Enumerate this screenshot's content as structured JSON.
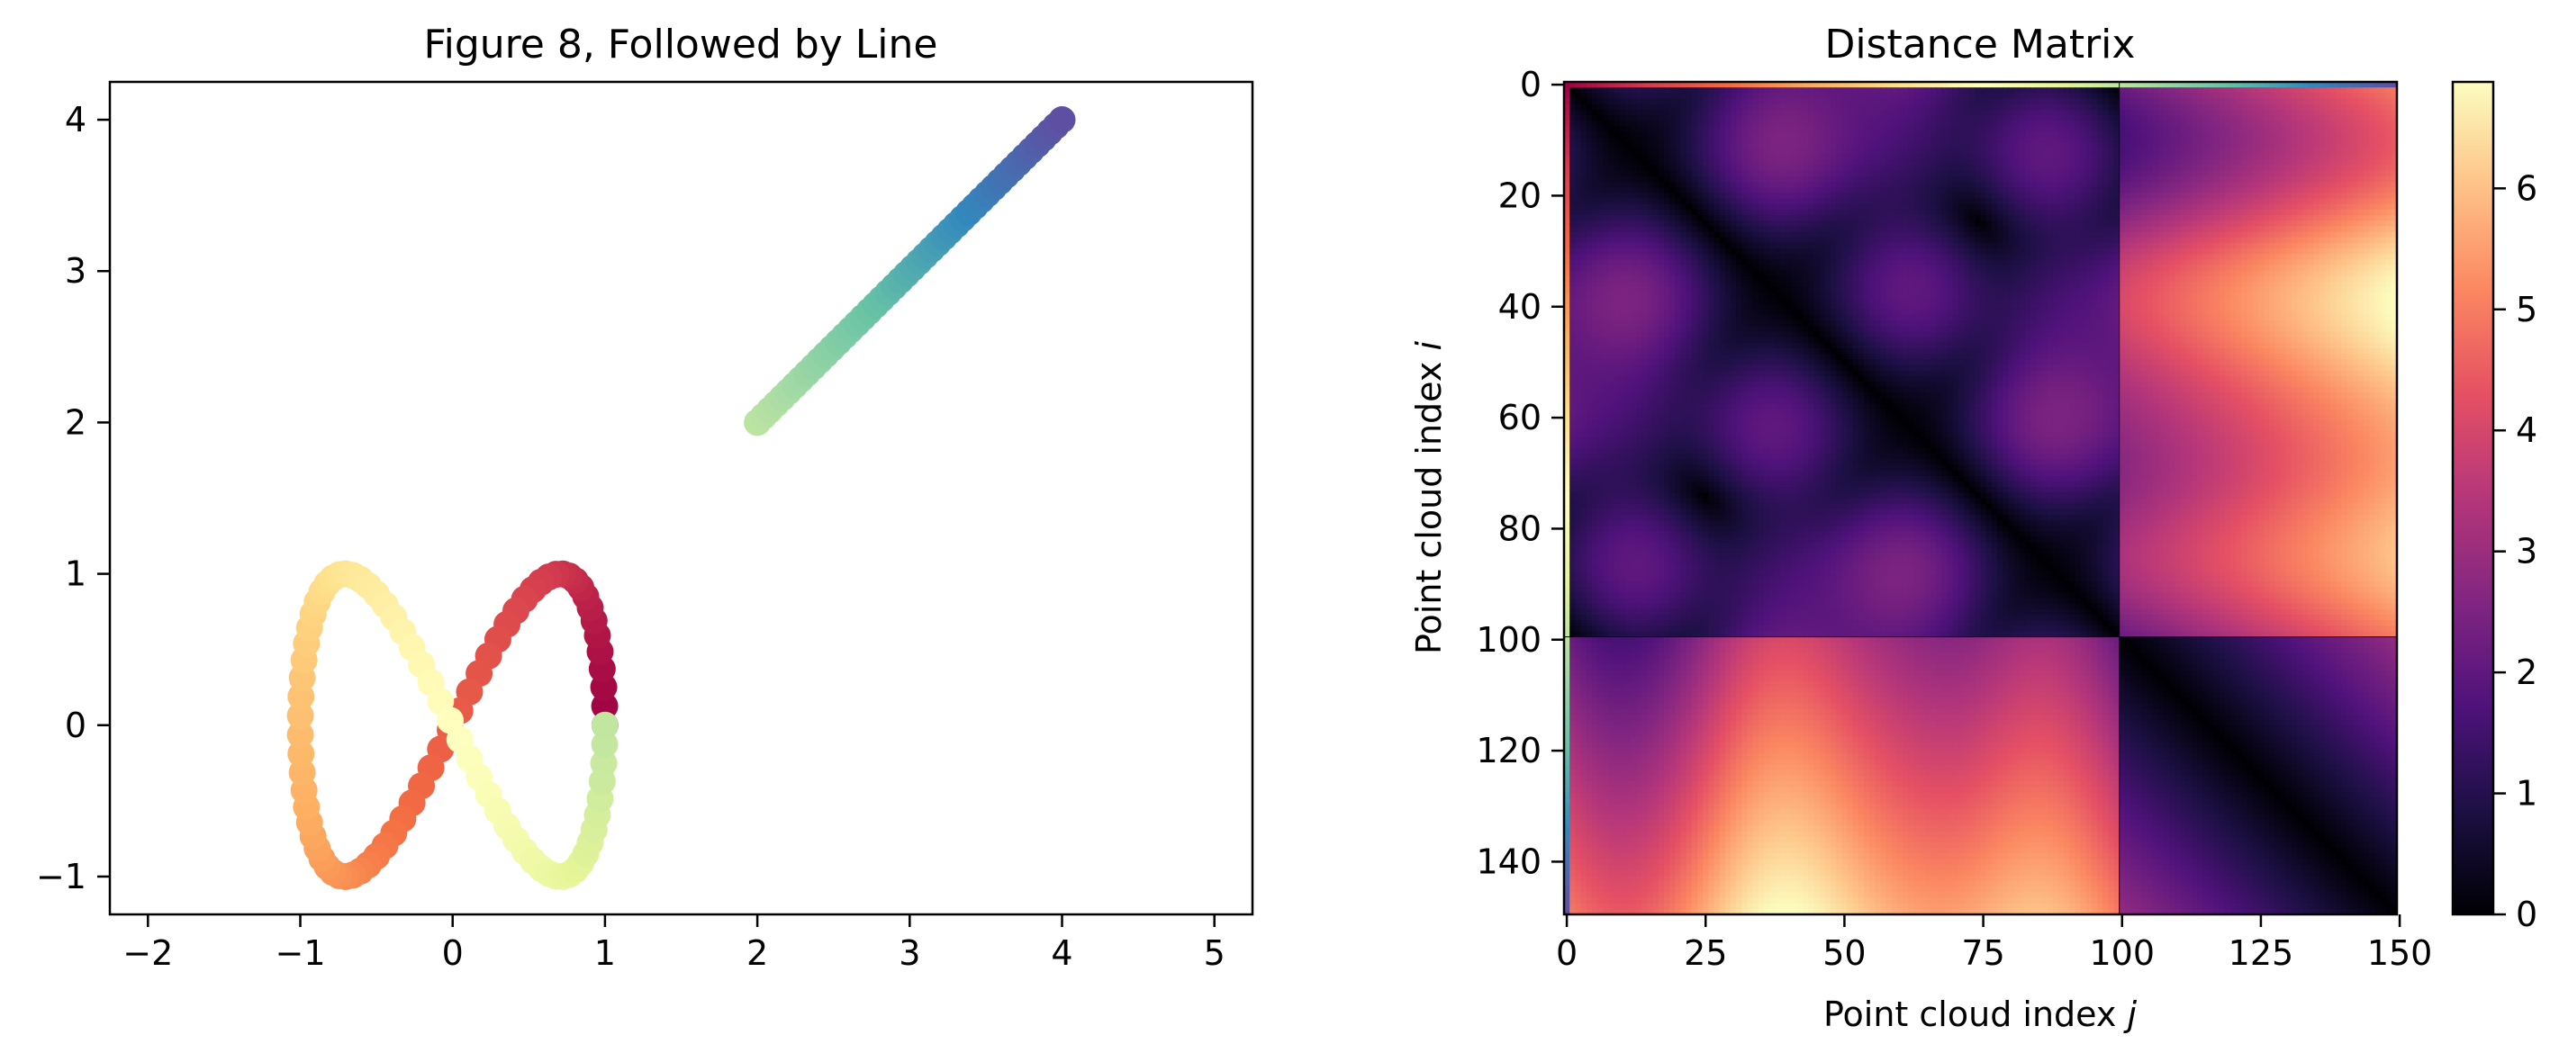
{
  "chart_data": [
    {
      "type": "scatter",
      "title": "Figure 8, Followed by Line",
      "xlabel": "",
      "ylabel": "",
      "xlim": [
        -2.25,
        5.25
      ],
      "ylim": [
        -1.25,
        4.25
      ],
      "xticks": [
        -2,
        -1,
        0,
        1,
        2,
        3,
        4,
        5
      ],
      "yticks": [
        -1,
        0,
        1,
        2,
        3,
        4
      ],
      "grid": false,
      "colormap": "Spectral",
      "figure8": {
        "n_points": 100,
        "x": "cos(t)",
        "y": "sin(2t)",
        "t_range": [
          0,
          6.2832
        ]
      },
      "line": {
        "n_points": 50,
        "start": [
          2,
          2
        ],
        "end": [
          4,
          4
        ]
      }
    },
    {
      "type": "heatmap",
      "title": "Distance Matrix",
      "xlabel": "Point cloud index ",
      "xlabel_var": "j",
      "ylabel": "Point cloud index ",
      "ylabel_var": "i",
      "xticks": [
        0,
        25,
        50,
        75,
        100,
        125,
        150
      ],
      "yticks": [
        0,
        20,
        40,
        60,
        80,
        100,
        120,
        140
      ],
      "colormap": "magma",
      "colorbar": {
        "ticks": [
          0,
          1,
          2,
          3,
          4,
          5,
          6
        ],
        "range": [
          0,
          6.88
        ]
      },
      "matrix_size": 150,
      "blocks": [
        0,
        100,
        150
      ],
      "index_colormap": "Spectral"
    }
  ]
}
